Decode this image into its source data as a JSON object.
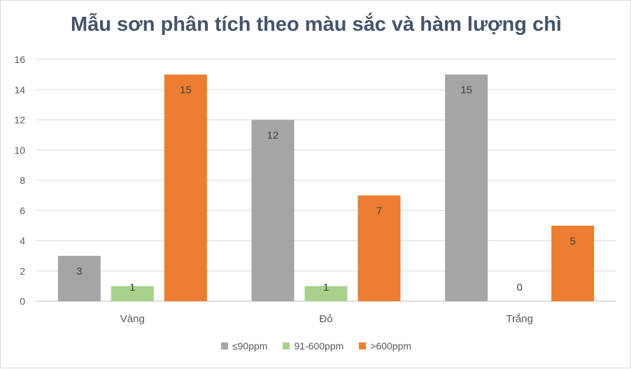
{
  "chart_data": {
    "type": "bar",
    "title": "Mẫu sơn phân tích theo màu sắc và hàm lượng chì",
    "categories": [
      "Vàng",
      "Đỏ",
      "Trắng"
    ],
    "series": [
      {
        "name": "≤90ppm",
        "values": [
          3,
          12,
          15
        ],
        "color": "#a5a5a5"
      },
      {
        "name": "91-600ppm",
        "values": [
          1,
          1,
          0
        ],
        "color": "#a9d18e"
      },
      {
        "name": ">600ppm",
        "values": [
          15,
          7,
          5
        ],
        "color": "#ed7d31"
      }
    ],
    "ylim": [
      0,
      16
    ],
    "yticks": [
      0,
      2,
      4,
      6,
      8,
      10,
      12,
      14,
      16
    ],
    "grid": true,
    "legend": "bottom"
  }
}
